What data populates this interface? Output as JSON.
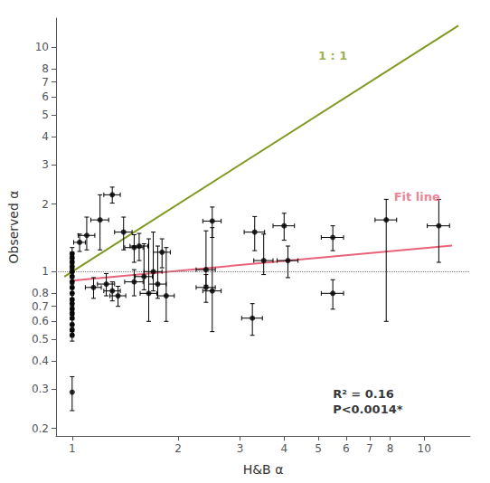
{
  "chart_data": {
    "type": "scatter",
    "xlabel": "H&B α",
    "ylabel": "Observed α",
    "log": true,
    "grid": false,
    "xlim": [
      0.9,
      13.5
    ],
    "ylim": [
      0.185,
      13.5
    ],
    "xticks": [
      1,
      2,
      3,
      4,
      5,
      6,
      7,
      8,
      10
    ],
    "yticks": [
      0.2,
      0.3,
      0.4,
      0.5,
      0.6,
      0.7,
      0.8,
      1,
      2,
      3,
      4,
      5,
      6,
      7,
      8,
      10
    ],
    "hline": 1.0,
    "series": [
      {
        "type": "line",
        "color": "#7f9a20",
        "line_style": "solid",
        "x": [
          0.95,
          12.5
        ],
        "values": [
          0.95,
          12.5
        ]
      },
      {
        "type": "line",
        "color": "#e8637a",
        "line_style": "solid",
        "x": [
          1.0,
          12.0
        ],
        "values": [
          0.9120108393559098,
          1.307619
        ]
      },
      {
        "type": "scatter",
        "color": "#000000",
        "marker": "circle",
        "x": [
          1.0,
          1.0,
          1.0,
          1.0,
          1.0,
          1.0,
          1.0,
          1.0,
          1.0,
          1.0,
          1.0,
          1.0,
          1.0,
          1.0,
          1.0,
          1.0,
          1.0,
          1.0,
          1.05,
          1.1,
          1.15,
          1.2,
          1.25,
          1.3,
          1.3,
          1.35,
          1.4,
          1.5,
          1.5,
          1.55,
          1.6,
          1.65,
          1.7,
          1.75,
          1.8,
          1.85,
          2.4,
          2.4,
          2.5,
          2.5,
          3.25,
          3.3,
          3.5,
          4.0,
          4.1,
          5.5,
          5.5,
          7.8,
          11.0
        ],
        "values": [
          0.29,
          0.95,
          1.0,
          1.05,
          1.1,
          1.15,
          1.2,
          0.9,
          0.85,
          0.8,
          0.75,
          0.72,
          0.68,
          0.65,
          0.62,
          0.58,
          0.55,
          0.52,
          1.35,
          1.45,
          0.85,
          1.7,
          0.88,
          0.82,
          2.2,
          0.78,
          1.5,
          1.28,
          0.9,
          1.3,
          0.95,
          0.8,
          1.0,
          0.88,
          1.22,
          0.78,
          0.85,
          1.02,
          0.82,
          1.68,
          0.62,
          1.5,
          1.12,
          1.6,
          1.12,
          0.8,
          1.42,
          1.7,
          1.6
        ],
        "xerr": [
          0.0,
          0.01,
          0.01,
          0.01,
          0.01,
          0.01,
          0.01,
          0.01,
          0.01,
          0.01,
          0.01,
          0.01,
          0.01,
          0.01,
          0.01,
          0.01,
          0.01,
          0.01,
          0.04,
          0.06,
          0.06,
          0.07,
          0.07,
          0.07,
          0.07,
          0.07,
          0.08,
          0.09,
          0.09,
          0.09,
          0.09,
          0.09,
          0.1,
          0.1,
          0.1,
          0.1,
          0.15,
          0.15,
          0.15,
          0.15,
          0.22,
          0.22,
          0.22,
          0.28,
          0.28,
          0.4,
          0.4,
          0.55,
          0.8
        ],
        "yerr_lo": [
          0.05,
          0.07,
          0.06,
          0.06,
          0.07,
          0.07,
          0.08,
          0.06,
          0.05,
          0.05,
          0.05,
          0.04,
          0.04,
          0.04,
          0.04,
          0.04,
          0.03,
          0.03,
          0.12,
          0.2,
          0.09,
          0.45,
          0.1,
          0.08,
          0.18,
          0.08,
          0.25,
          0.18,
          0.12,
          0.18,
          0.12,
          0.2,
          0.18,
          0.12,
          0.18,
          0.18,
          0.12,
          0.15,
          0.28,
          0.26,
          0.1,
          0.26,
          0.15,
          0.22,
          0.18,
          0.12,
          0.18,
          1.1,
          0.5
        ],
        "yerr_hi": [
          0.05,
          0.07,
          0.06,
          0.06,
          0.07,
          0.07,
          0.08,
          0.06,
          0.05,
          0.05,
          0.05,
          0.04,
          0.04,
          0.04,
          0.04,
          0.04,
          0.03,
          0.03,
          0.12,
          0.3,
          0.09,
          0.5,
          0.1,
          0.08,
          0.18,
          0.08,
          0.25,
          0.18,
          0.12,
          0.18,
          0.38,
          0.6,
          0.5,
          0.42,
          0.18,
          0.5,
          0.12,
          0.5,
          0.75,
          0.26,
          0.1,
          0.26,
          0.35,
          0.22,
          0.18,
          0.12,
          0.18,
          0.4,
          0.5
        ]
      }
    ],
    "annotations": [
      {
        "text": "1 : 1",
        "x": 5.0,
        "y": 8.5,
        "color": "#7f9a20"
      },
      {
        "text": "Fit line",
        "x": 8.2,
        "y": 2.0,
        "color": "#e8637a"
      },
      {
        "text": "R² = 0.16\nP<0.0014*",
        "x": 5.5,
        "y": 0.225,
        "color": "#000000"
      }
    ]
  }
}
